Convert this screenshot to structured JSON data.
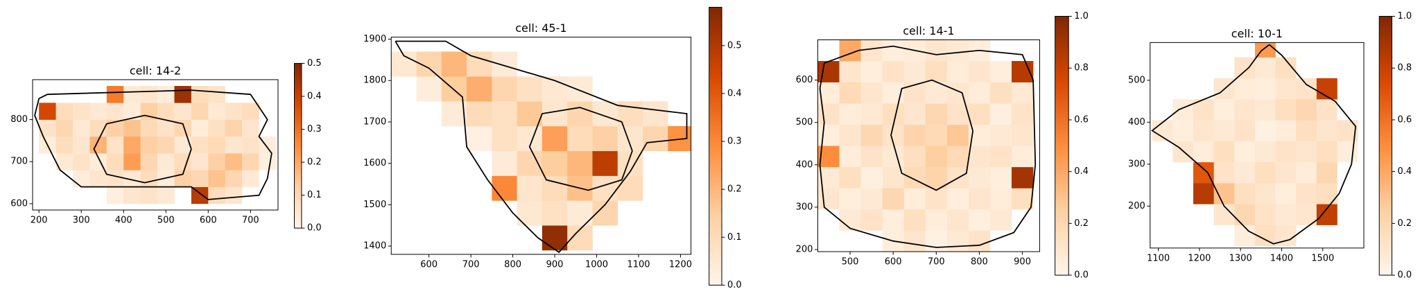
{
  "chart_data": [
    {
      "type": "heatmap",
      "title": "cell: 14-2",
      "x": [
        220,
        260,
        300,
        340,
        380,
        420,
        460,
        500,
        540,
        580,
        620,
        660,
        700,
        740
      ],
      "y": [
        620,
        660,
        700,
        740,
        780,
        820,
        860
      ],
      "values": [
        [
          null,
          null,
          null,
          null,
          0.02,
          0.05,
          0.06,
          0.04,
          null,
          0.42,
          0.08,
          0.05,
          null,
          null
        ],
        [
          null,
          null,
          0.03,
          0.05,
          0.06,
          0.04,
          0.08,
          0.03,
          0.12,
          0.1,
          0.15,
          0.1,
          0.04,
          null
        ],
        [
          null,
          0.04,
          0.06,
          0.03,
          0.08,
          0.22,
          0.1,
          0.04,
          0.08,
          0.05,
          0.12,
          0.16,
          0.1,
          0.02
        ],
        [
          0.03,
          0.08,
          0.05,
          0.18,
          0.06,
          0.2,
          0.12,
          0.1,
          0.04,
          0.07,
          0.09,
          0.05,
          0.06,
          0.03
        ],
        [
          0.06,
          0.1,
          0.04,
          0.08,
          0.12,
          0.15,
          0.09,
          0.06,
          0.1,
          0.03,
          0.07,
          0.11,
          0.05,
          null
        ],
        [
          0.38,
          0.08,
          0.06,
          0.04,
          0.05,
          0.03,
          0.12,
          0.08,
          0.05,
          0.1,
          0.04,
          0.06,
          0.08,
          null
        ],
        [
          null,
          null,
          null,
          null,
          0.28,
          0.04,
          0.05,
          0.03,
          0.46,
          0.08,
          0.06,
          null,
          null,
          null
        ]
      ],
      "xlim": [
        185,
        765
      ],
      "ylim": [
        585,
        895
      ],
      "xticks": [
        200,
        300,
        400,
        500,
        600,
        700
      ],
      "yticks": [
        600,
        700,
        800
      ],
      "clim": [
        0,
        0.5
      ],
      "cticks": [
        {
          "value": 0,
          "label": "0.0"
        },
        0.1,
        0.2,
        0.3,
        0.4,
        0.5
      ],
      "colormap": [
        "#fff5eb",
        "#fdd0a2",
        "#fd8d3c",
        "#d94801",
        "#7f2704"
      ],
      "outline_color": "#000000",
      "cell_outline": {
        "x": [
          200,
          220,
          560,
          700,
          740,
          720,
          750,
          740,
          720,
          600,
          560,
          300,
          250,
          210,
          190,
          200
        ],
        "y": [
          850,
          860,
          870,
          860,
          800,
          760,
          720,
          660,
          620,
          610,
          640,
          640,
          680,
          760,
          810,
          850
        ]
      },
      "nucleus_outline": {
        "x": [
          560,
          540,
          450,
          360,
          330,
          360,
          450,
          540,
          560
        ],
        "y": [
          730,
          790,
          810,
          790,
          730,
          670,
          650,
          670,
          730
        ]
      }
    },
    {
      "type": "heatmap",
      "title": "cell: 45-1",
      "x": [
        540,
        600,
        660,
        720,
        780,
        840,
        900,
        960,
        1020,
        1080,
        1140,
        1200
      ],
      "y": [
        1420,
        1480,
        1540,
        1600,
        1660,
        1720,
        1780,
        1840
      ],
      "values": [
        [
          null,
          null,
          null,
          null,
          null,
          null,
          0.55,
          0.1,
          null,
          null,
          null,
          null
        ],
        [
          null,
          null,
          null,
          null,
          null,
          0.05,
          0.08,
          0.04,
          0.12,
          null,
          null,
          null
        ],
        [
          null,
          null,
          null,
          null,
          0.3,
          0.06,
          0.1,
          0.18,
          0.08,
          0.1,
          null,
          null
        ],
        [
          null,
          null,
          null,
          null,
          0.04,
          0.12,
          0.15,
          0.2,
          0.48,
          0.08,
          null,
          null
        ],
        [
          null,
          null,
          null,
          0.02,
          0.08,
          0.05,
          0.25,
          0.1,
          0.14,
          0.06,
          0.12,
          0.28
        ],
        [
          null,
          null,
          0.04,
          0.1,
          0.08,
          0.16,
          0.06,
          0.12,
          0.05,
          0.09,
          0.06,
          null
        ],
        [
          null,
          0.03,
          0.15,
          0.22,
          0.12,
          0.08,
          0.05,
          0.04,
          null,
          null,
          null,
          null
        ],
        [
          0.05,
          0.12,
          0.2,
          0.1,
          0.04,
          null,
          null,
          null,
          null,
          null,
          null,
          null
        ]
      ],
      "xlim": [
        510,
        1225
      ],
      "ylim": [
        1380,
        1905
      ],
      "xticks": [
        600,
        700,
        800,
        900,
        1000,
        1100,
        1200
      ],
      "yticks": [
        1400,
        1500,
        1600,
        1700,
        1800,
        1900
      ],
      "clim": [
        0,
        0.58
      ],
      "cticks": [
        {
          "value": 0,
          "label": "0.0"
        },
        0.1,
        0.2,
        0.3,
        0.4,
        0.5
      ],
      "colormap": [
        "#fff5eb",
        "#fdd0a2",
        "#fd8d3c",
        "#d94801",
        "#7f2704"
      ],
      "outline_color": "#000000",
      "cell_outline": {
        "x": [
          520,
          640,
          700,
          900,
          1050,
          1215,
          1215,
          1120,
          1080,
          1020,
          950,
          910,
          860,
          800,
          740,
          690,
          680,
          600,
          540,
          520
        ],
        "y": [
          1895,
          1895,
          1860,
          1800,
          1740,
          1720,
          1660,
          1650,
          1580,
          1500,
          1430,
          1385,
          1420,
          1480,
          1560,
          1640,
          1760,
          1830,
          1860,
          1895
        ]
      },
      "nucleus_outline": {
        "x": [
          1085,
          1060,
          980,
          880,
          840,
          870,
          960,
          1060,
          1085
        ],
        "y": [
          1630,
          1560,
          1535,
          1560,
          1640,
          1720,
          1735,
          1700,
          1630
        ]
      }
    },
    {
      "type": "heatmap",
      "title": "cell: 14-1",
      "x": [
        450,
        500,
        550,
        600,
        650,
        700,
        750,
        800,
        850,
        900
      ],
      "y": [
        220,
        270,
        320,
        370,
        420,
        470,
        520,
        570,
        620,
        670
      ],
      "values": [
        [
          null,
          null,
          null,
          0.05,
          0.1,
          0.03,
          0.08,
          0.12,
          null,
          null
        ],
        [
          null,
          0.08,
          0.12,
          0.05,
          0.15,
          0.06,
          0.1,
          0.04,
          0.08,
          null
        ],
        [
          0.1,
          0.05,
          0.08,
          0.2,
          0.06,
          0.12,
          0.05,
          0.1,
          0.06,
          0.15
        ],
        [
          0.08,
          0.15,
          0.04,
          0.1,
          0.18,
          0.22,
          0.12,
          0.08,
          0.05,
          0.9
        ],
        [
          0.5,
          0.06,
          0.12,
          0.08,
          0.15,
          0.25,
          0.18,
          0.1,
          0.12,
          0.06
        ],
        [
          0.05,
          0.1,
          0.2,
          0.12,
          0.22,
          0.18,
          0.28,
          0.06,
          0.08,
          0.1
        ],
        [
          0.12,
          0.06,
          0.08,
          0.15,
          0.1,
          0.2,
          0.12,
          0.15,
          0.04,
          0.12
        ],
        [
          0.06,
          0.18,
          0.1,
          0.05,
          0.12,
          0.08,
          0.1,
          0.06,
          0.15,
          0.08
        ],
        [
          0.88,
          0.1,
          0.05,
          0.12,
          0.08,
          0.15,
          0.06,
          0.1,
          0.05,
          0.85
        ],
        [
          null,
          0.4,
          0.1,
          0.05,
          0.06,
          0.1,
          0.08,
          0.05,
          null,
          null
        ]
      ],
      "xlim": [
        425,
        940
      ],
      "ylim": [
        195,
        695
      ],
      "xticks": [
        500,
        600,
        700,
        800,
        900
      ],
      "yticks": [
        200,
        300,
        400,
        500,
        600
      ],
      "clim": [
        0,
        1
      ],
      "cticks": [
        {
          "value": 0,
          "label": "0.0"
        },
        0.2,
        0.4,
        0.6,
        0.8,
        {
          "value": 1,
          "label": "1.0"
        }
      ],
      "colormap": [
        "#fff5eb",
        "#fdd0a2",
        "#fd8d3c",
        "#d94801",
        "#7f2704"
      ],
      "outline_color": "#000000",
      "cell_outline": {
        "x": [
          440,
          520,
          600,
          700,
          800,
          900,
          925,
          930,
          920,
          880,
          800,
          700,
          600,
          500,
          440,
          430,
          440,
          430,
          440
        ],
        "y": [
          640,
          670,
          680,
          660,
          670,
          660,
          600,
          400,
          300,
          240,
          210,
          205,
          220,
          250,
          300,
          400,
          500,
          580,
          640
        ]
      },
      "nucleus_outline": {
        "x": [
          785,
          760,
          690,
          620,
          595,
          620,
          700,
          770,
          785
        ],
        "y": [
          480,
          570,
          600,
          580,
          470,
          380,
          340,
          380,
          480
        ]
      }
    },
    {
      "type": "heatmap",
      "title": "cell: 10-1",
      "x": [
        1110,
        1160,
        1210,
        1260,
        1310,
        1360,
        1410,
        1460,
        1510,
        1560
      ],
      "y": [
        130,
        180,
        230,
        280,
        330,
        380,
        430,
        480,
        530,
        580
      ],
      "values": [
        [
          null,
          null,
          null,
          null,
          0.05,
          0.15,
          0.1,
          null,
          null,
          null
        ],
        [
          null,
          null,
          null,
          0.1,
          0.2,
          0.12,
          0.08,
          0.1,
          0.82,
          null
        ],
        [
          null,
          null,
          0.85,
          0.3,
          0.15,
          0.1,
          0.05,
          0.12,
          0.15,
          null
        ],
        [
          null,
          null,
          0.7,
          0.12,
          0.08,
          0.15,
          0.1,
          0.06,
          0.2,
          null
        ],
        [
          null,
          0.1,
          0.06,
          0.15,
          0.05,
          0.08,
          0.12,
          0.1,
          0.15,
          0.05
        ],
        [
          0.08,
          0.05,
          0.1,
          0.08,
          0.12,
          0.03,
          0.06,
          0.15,
          0.1,
          0.12
        ],
        [
          null,
          0.06,
          0.12,
          0.05,
          0.1,
          0.08,
          0.15,
          0.2,
          0.12,
          null
        ],
        [
          null,
          null,
          null,
          0.1,
          0.06,
          0.05,
          0.1,
          0.12,
          0.8,
          null
        ],
        [
          null,
          null,
          null,
          null,
          0.12,
          0.08,
          0.15,
          null,
          null,
          null
        ],
        [
          null,
          null,
          null,
          null,
          null,
          0.45,
          null,
          null,
          null,
          null
        ]
      ],
      "xlim": [
        1080,
        1600
      ],
      "ylim": [
        100,
        590
      ],
      "xticks": [
        1100,
        1200,
        1300,
        1400,
        1500
      ],
      "yticks": [
        200,
        300,
        400,
        500
      ],
      "clim": [
        0,
        1
      ],
      "cticks": [
        {
          "value": 0,
          "label": "0.0"
        },
        0.2,
        0.4,
        0.6,
        0.8,
        {
          "value": 1,
          "label": "1.0"
        }
      ],
      "colormap": [
        "#fff5eb",
        "#fdd0a2",
        "#fd8d3c",
        "#d94801",
        "#7f2704"
      ],
      "outline_color": "#000000",
      "cell_outline": {
        "x": [
          1370,
          1400,
          1460,
          1530,
          1580,
          1570,
          1540,
          1490,
          1420,
          1380,
          1320,
          1260,
          1220,
          1150,
          1085,
          1150,
          1250,
          1320,
          1350,
          1370
        ],
        "y": [
          585,
          560,
          490,
          450,
          390,
          300,
          230,
          170,
          120,
          110,
          140,
          200,
          280,
          340,
          380,
          430,
          470,
          530,
          570,
          585
        ]
      },
      "nucleus_outline": null
    }
  ]
}
